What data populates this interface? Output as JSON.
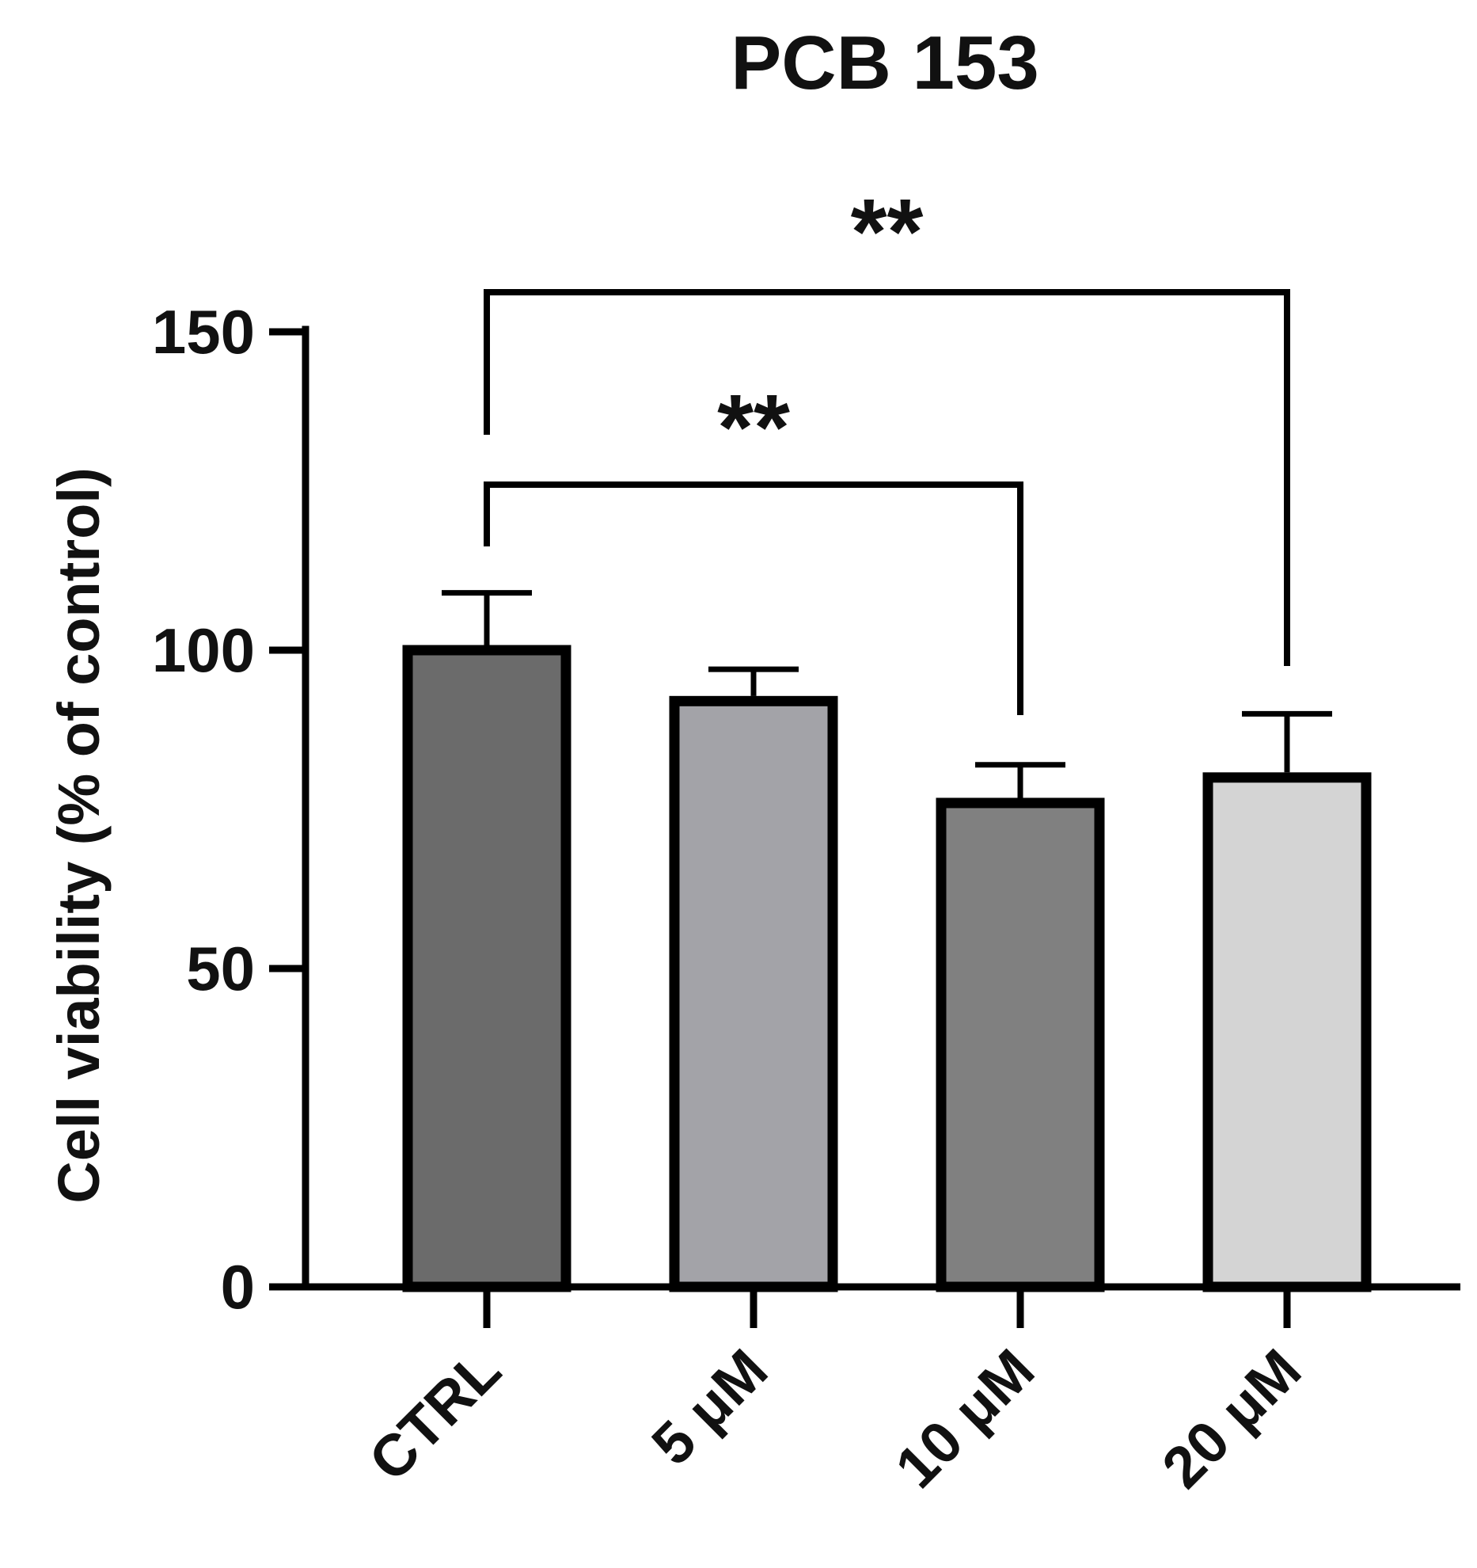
{
  "chart_data": {
    "type": "bar",
    "title": "PCB 153",
    "ylabel": "Cell viability (% of control)",
    "xlabel": "",
    "categories": [
      "CTRL",
      "5 μM",
      "10 μM",
      "20 μM"
    ],
    "values": [
      100,
      92,
      76,
      80
    ],
    "errors": [
      9,
      5,
      6,
      10
    ],
    "colors": [
      "#6b6b6b",
      "#a3a3a8",
      "#808080",
      "#d4d4d4"
    ],
    "ylim": [
      0,
      150
    ],
    "yticks": [
      0,
      50,
      100,
      150
    ],
    "ytick_labels": [
      "0",
      "50",
      "100",
      "150"
    ],
    "grid": false,
    "legend": "none",
    "significance": [
      {
        "from": "CTRL",
        "to": "10 μM",
        "label": "**"
      },
      {
        "from": "CTRL",
        "to": "20 μM",
        "label": "**"
      }
    ]
  }
}
